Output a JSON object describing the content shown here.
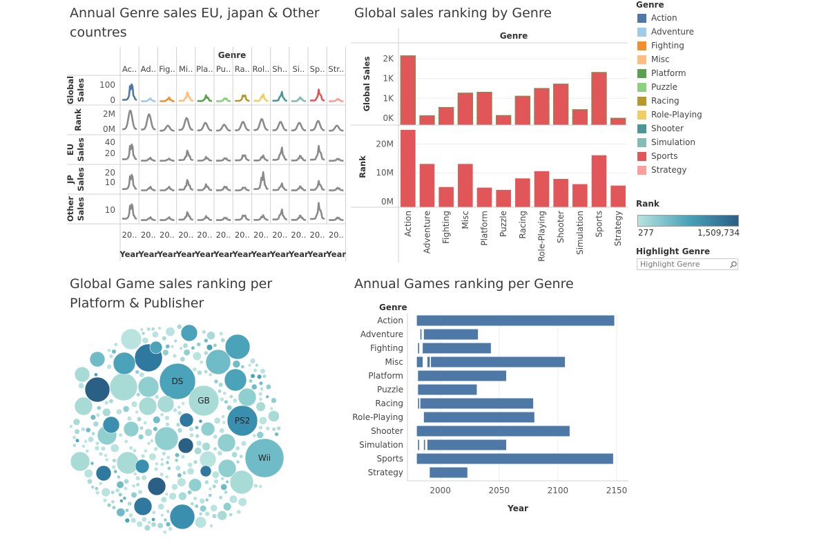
{
  "titles": {
    "annual_genre": "Annual Genre sales EU, japan & Other countres",
    "annual_genre_l1": "Annual Genre sales EU, japan & Other",
    "annual_genre_l2": "countres",
    "global_rank": "Global  sales ranking by Genre",
    "bubble_l1": "Global  Game sales ranking per",
    "bubble_l2": "Platform & Publisher",
    "annual_rank": "Annual Games ranking per Genre"
  },
  "legend": {
    "title": "Genre",
    "items": [
      {
        "label": "Action",
        "color": "#4e79a7"
      },
      {
        "label": "Adventure",
        "color": "#a0cbe8"
      },
      {
        "label": "Fighting",
        "color": "#f28e2b"
      },
      {
        "label": "Misc",
        "color": "#ffbe7d"
      },
      {
        "label": "Platform",
        "color": "#59a14f"
      },
      {
        "label": "Puzzle",
        "color": "#8cd17d"
      },
      {
        "label": "Racing",
        "color": "#b6992d"
      },
      {
        "label": "Role-Playing",
        "color": "#f1ce63"
      },
      {
        "label": "Shooter",
        "color": "#499894"
      },
      {
        "label": "Simulation",
        "color": "#86bcb6"
      },
      {
        "label": "Sports",
        "color": "#e15759"
      },
      {
        "label": "Strategy",
        "color": "#ff9d9a"
      }
    ]
  },
  "rank_legend": {
    "title": "Rank",
    "min": "277",
    "max": "1,509,734"
  },
  "highlight": {
    "title": "Highlight Genre",
    "placeholder": "Highlight Genre"
  },
  "chart_data": [
    {
      "type": "line",
      "title": "Annual Genre sales EU, japan & Other countres",
      "column_header": "Genre",
      "columns": [
        "Ac..",
        "Ad..",
        "Fig..",
        "Mi..",
        "Pla..",
        "Pu..",
        "Ra..",
        "Rol..",
        "Sh..",
        "Si..",
        "Sp..",
        "Str.."
      ],
      "rows": [
        "Global Sales",
        "Rank",
        "EU Sales",
        "JP Sales",
        "Other Sales"
      ],
      "y_ticks": {
        "Global Sales": [
          "100",
          "0"
        ],
        "Rank": [
          "2M",
          "0M"
        ],
        "EU Sales": [
          "40",
          "20"
        ],
        "JP Sales": [
          "20",
          "10"
        ],
        "Other Sales": [
          "10"
        ]
      },
      "x_tick": "20..",
      "x_label": "Year",
      "peaks": {
        "Global Sales": [
          125,
          20,
          25,
          58,
          38,
          24,
          48,
          45,
          58,
          28,
          72,
          18
        ],
        "Rank": [
          2.2,
          1.8,
          0.6,
          1.4,
          0.9,
          0.7,
          1.0,
          1.3,
          1.0,
          0.9,
          1.1,
          0.6
        ],
        "EU Sales": [
          48,
          8,
          6,
          26,
          10,
          8,
          18,
          14,
          32,
          14,
          36,
          6
        ],
        "JP Sales": [
          24,
          5,
          5,
          14,
          8,
          6,
          5,
          24,
          9,
          6,
          12,
          4
        ],
        "Other Sales": [
          18,
          3,
          3,
          8,
          4,
          3,
          6,
          5,
          10,
          5,
          16,
          3
        ]
      }
    },
    {
      "type": "bar",
      "title": "Global  sales ranking by Genre",
      "column_header": "Genre",
      "categories": [
        "Action",
        "Adventure",
        "Fighting",
        "Misc",
        "Platform",
        "Puzzle",
        "Racing",
        "Role-Playing",
        "Shooter",
        "Simulation",
        "Sports",
        "Strategy"
      ],
      "series": [
        {
          "name": "Global Sales",
          "values": [
            1751,
            239,
            448,
            810,
            831,
            244,
            732,
            927,
            1037,
            392,
            1331,
            175
          ],
          "axis_ticks": [
            "0K",
            "1K",
            "1K",
            "2K"
          ]
        },
        {
          "name": "Rank",
          "values": [
            26.8,
            15.0,
            7.0,
            15.0,
            6.8,
            6.0,
            10.0,
            12.5,
            9.8,
            8.0,
            18.0,
            7.5
          ],
          "axis_ticks": [
            "0M",
            "10M",
            "20M"
          ]
        }
      ]
    },
    {
      "type": "scatter",
      "title": "Global  Game sales ranking per Platform & Publisher",
      "subtype": "packed-bubbles",
      "labels": [
        "DS",
        "GB",
        "PS2",
        "Wii"
      ]
    },
    {
      "type": "bar",
      "subtype": "gantt",
      "title": "Annual Games ranking per Genre",
      "ylabel": "Genre",
      "xlabel": "Year",
      "x_ticks": [
        "2000",
        "2050",
        "2100",
        "2150"
      ],
      "xlim": [
        1972,
        2160
      ],
      "categories": [
        "Action",
        "Adventure",
        "Fighting",
        "Misc",
        "Platform",
        "Puzzle",
        "Racing",
        "Role-Playing",
        "Shooter",
        "Simulation",
        "Sports",
        "Strategy"
      ],
      "ranges": [
        [
          [
            1980,
            2148
          ]
        ],
        [
          [
            1983,
            1984
          ],
          [
            1986,
            2032
          ]
        ],
        [
          [
            1981,
            1982
          ],
          [
            1985,
            2043
          ]
        ],
        [
          [
            1980,
            1985
          ],
          [
            1989,
            1991
          ],
          [
            1992,
            2106
          ]
        ],
        [
          [
            1981,
            2056
          ]
        ],
        [
          [
            1981,
            2031
          ]
        ],
        [
          [
            1981,
            1982
          ],
          [
            1983,
            2079
          ]
        ],
        [
          [
            1986,
            2080
          ]
        ],
        [
          [
            1980,
            2110
          ]
        ],
        [
          [
            1981,
            1982
          ],
          [
            1986,
            1987
          ],
          [
            1989,
            2056
          ]
        ],
        [
          [
            1980,
            2147
          ]
        ],
        [
          [
            1991,
            2023
          ]
        ]
      ]
    }
  ]
}
